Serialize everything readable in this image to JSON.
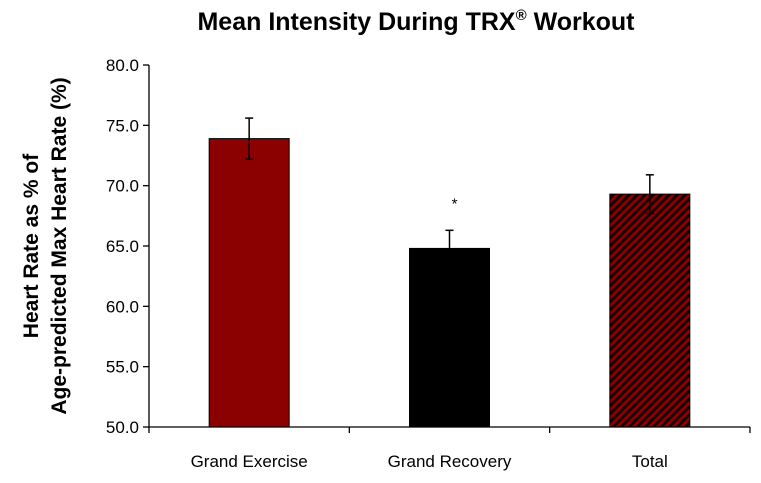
{
  "chart_data": {
    "type": "bar",
    "title": "Mean Intensity During TRX",
    "title_superscript": "®",
    "title_suffix": " Workout",
    "ylabel_line1": "Heart Rate as % of",
    "ylabel_line2": "Age-predicted Max Heart Rate (%)",
    "xlabel": "",
    "categories": [
      "Grand Exercise",
      "Grand Recovery",
      "Total"
    ],
    "values": [
      73.9,
      64.8,
      69.3
    ],
    "errors": [
      1.7,
      1.5,
      1.6
    ],
    "annotations": [
      "",
      "*",
      ""
    ],
    "ylim": [
      50.0,
      80.0
    ],
    "yticks": [
      "80.0",
      "75.0",
      "70.0",
      "65.0",
      "60.0",
      "55.0",
      "50.0"
    ],
    "grid": false,
    "legend": "none",
    "colors": {
      "bar_fill": [
        "#8b0000",
        "#000000",
        "hatch"
      ],
      "hatch_light": "#8b0000",
      "hatch_dark": "#1a0000",
      "axis": "#000000"
    }
  }
}
